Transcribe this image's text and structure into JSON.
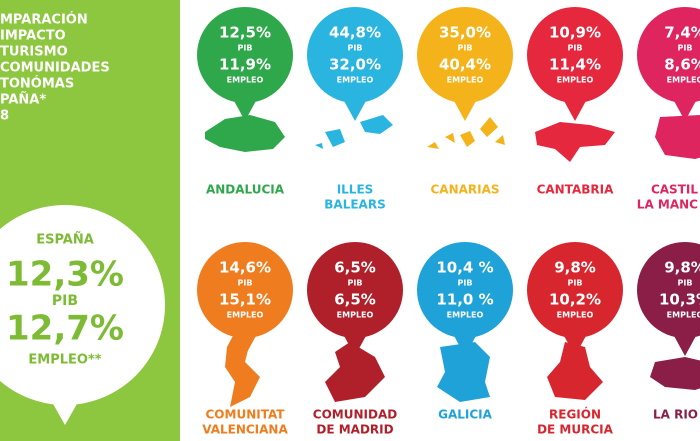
{
  "sidebar": {
    "title_lines": [
      "MPARACIÓN",
      "IMPACTO",
      "TURISMO",
      "COMUNIDADES",
      "TONÓMAS",
      "PAÑA*",
      "8"
    ],
    "spain": {
      "name": "ESPAÑA",
      "pib": "12,3%",
      "pib_label": "PIB",
      "empleo": "12,7%",
      "empleo_label": "EMPLEO**"
    }
  },
  "labels": {
    "pib": "PIB",
    "empleo": "EMPLEO"
  },
  "regions": [
    {
      "name": [
        "ANDALUCIA"
      ],
      "pib": "12,5%",
      "empleo": "11,9%",
      "color": "#2ea84a"
    },
    {
      "name": [
        "ILLES",
        "BALEARS"
      ],
      "pib": "44,8%",
      "empleo": "32,0%",
      "color": "#2ab4e0"
    },
    {
      "name": [
        "CANARIAS"
      ],
      "pib": "35,0%",
      "empleo": "40,4%",
      "color": "#f5b31b"
    },
    {
      "name": [
        "CANTABRIA"
      ],
      "pib": "10,9%",
      "empleo": "11,4%",
      "color": "#e5283d"
    },
    {
      "name": [
        "CASTIL",
        "LA MANC"
      ],
      "pib": "7,4%",
      "empleo": "8,6%",
      "color": "#de2560"
    },
    {
      "name": [
        "COMUNITAT",
        "VALENCIANA"
      ],
      "pib": "14,6%",
      "empleo": "15,1%",
      "color": "#ef7c1e"
    },
    {
      "name": [
        "COMUNIDAD",
        "DE MADRID"
      ],
      "pib": "6,5%",
      "empleo": "6,5%",
      "color": "#b0202b"
    },
    {
      "name": [
        "GALICIA"
      ],
      "pib": "10,4 %",
      "empleo": "11,0 %",
      "color": "#1fa2d8"
    },
    {
      "name": [
        "REGIÓN",
        "DE MURCIA"
      ],
      "pib": "9,8%",
      "empleo": "10,2%",
      "color": "#d8262f"
    },
    {
      "name": [
        "LA RIO"
      ],
      "pib": "9,8%",
      "empleo": "10,3%",
      "color": "#8a1e46"
    }
  ]
}
